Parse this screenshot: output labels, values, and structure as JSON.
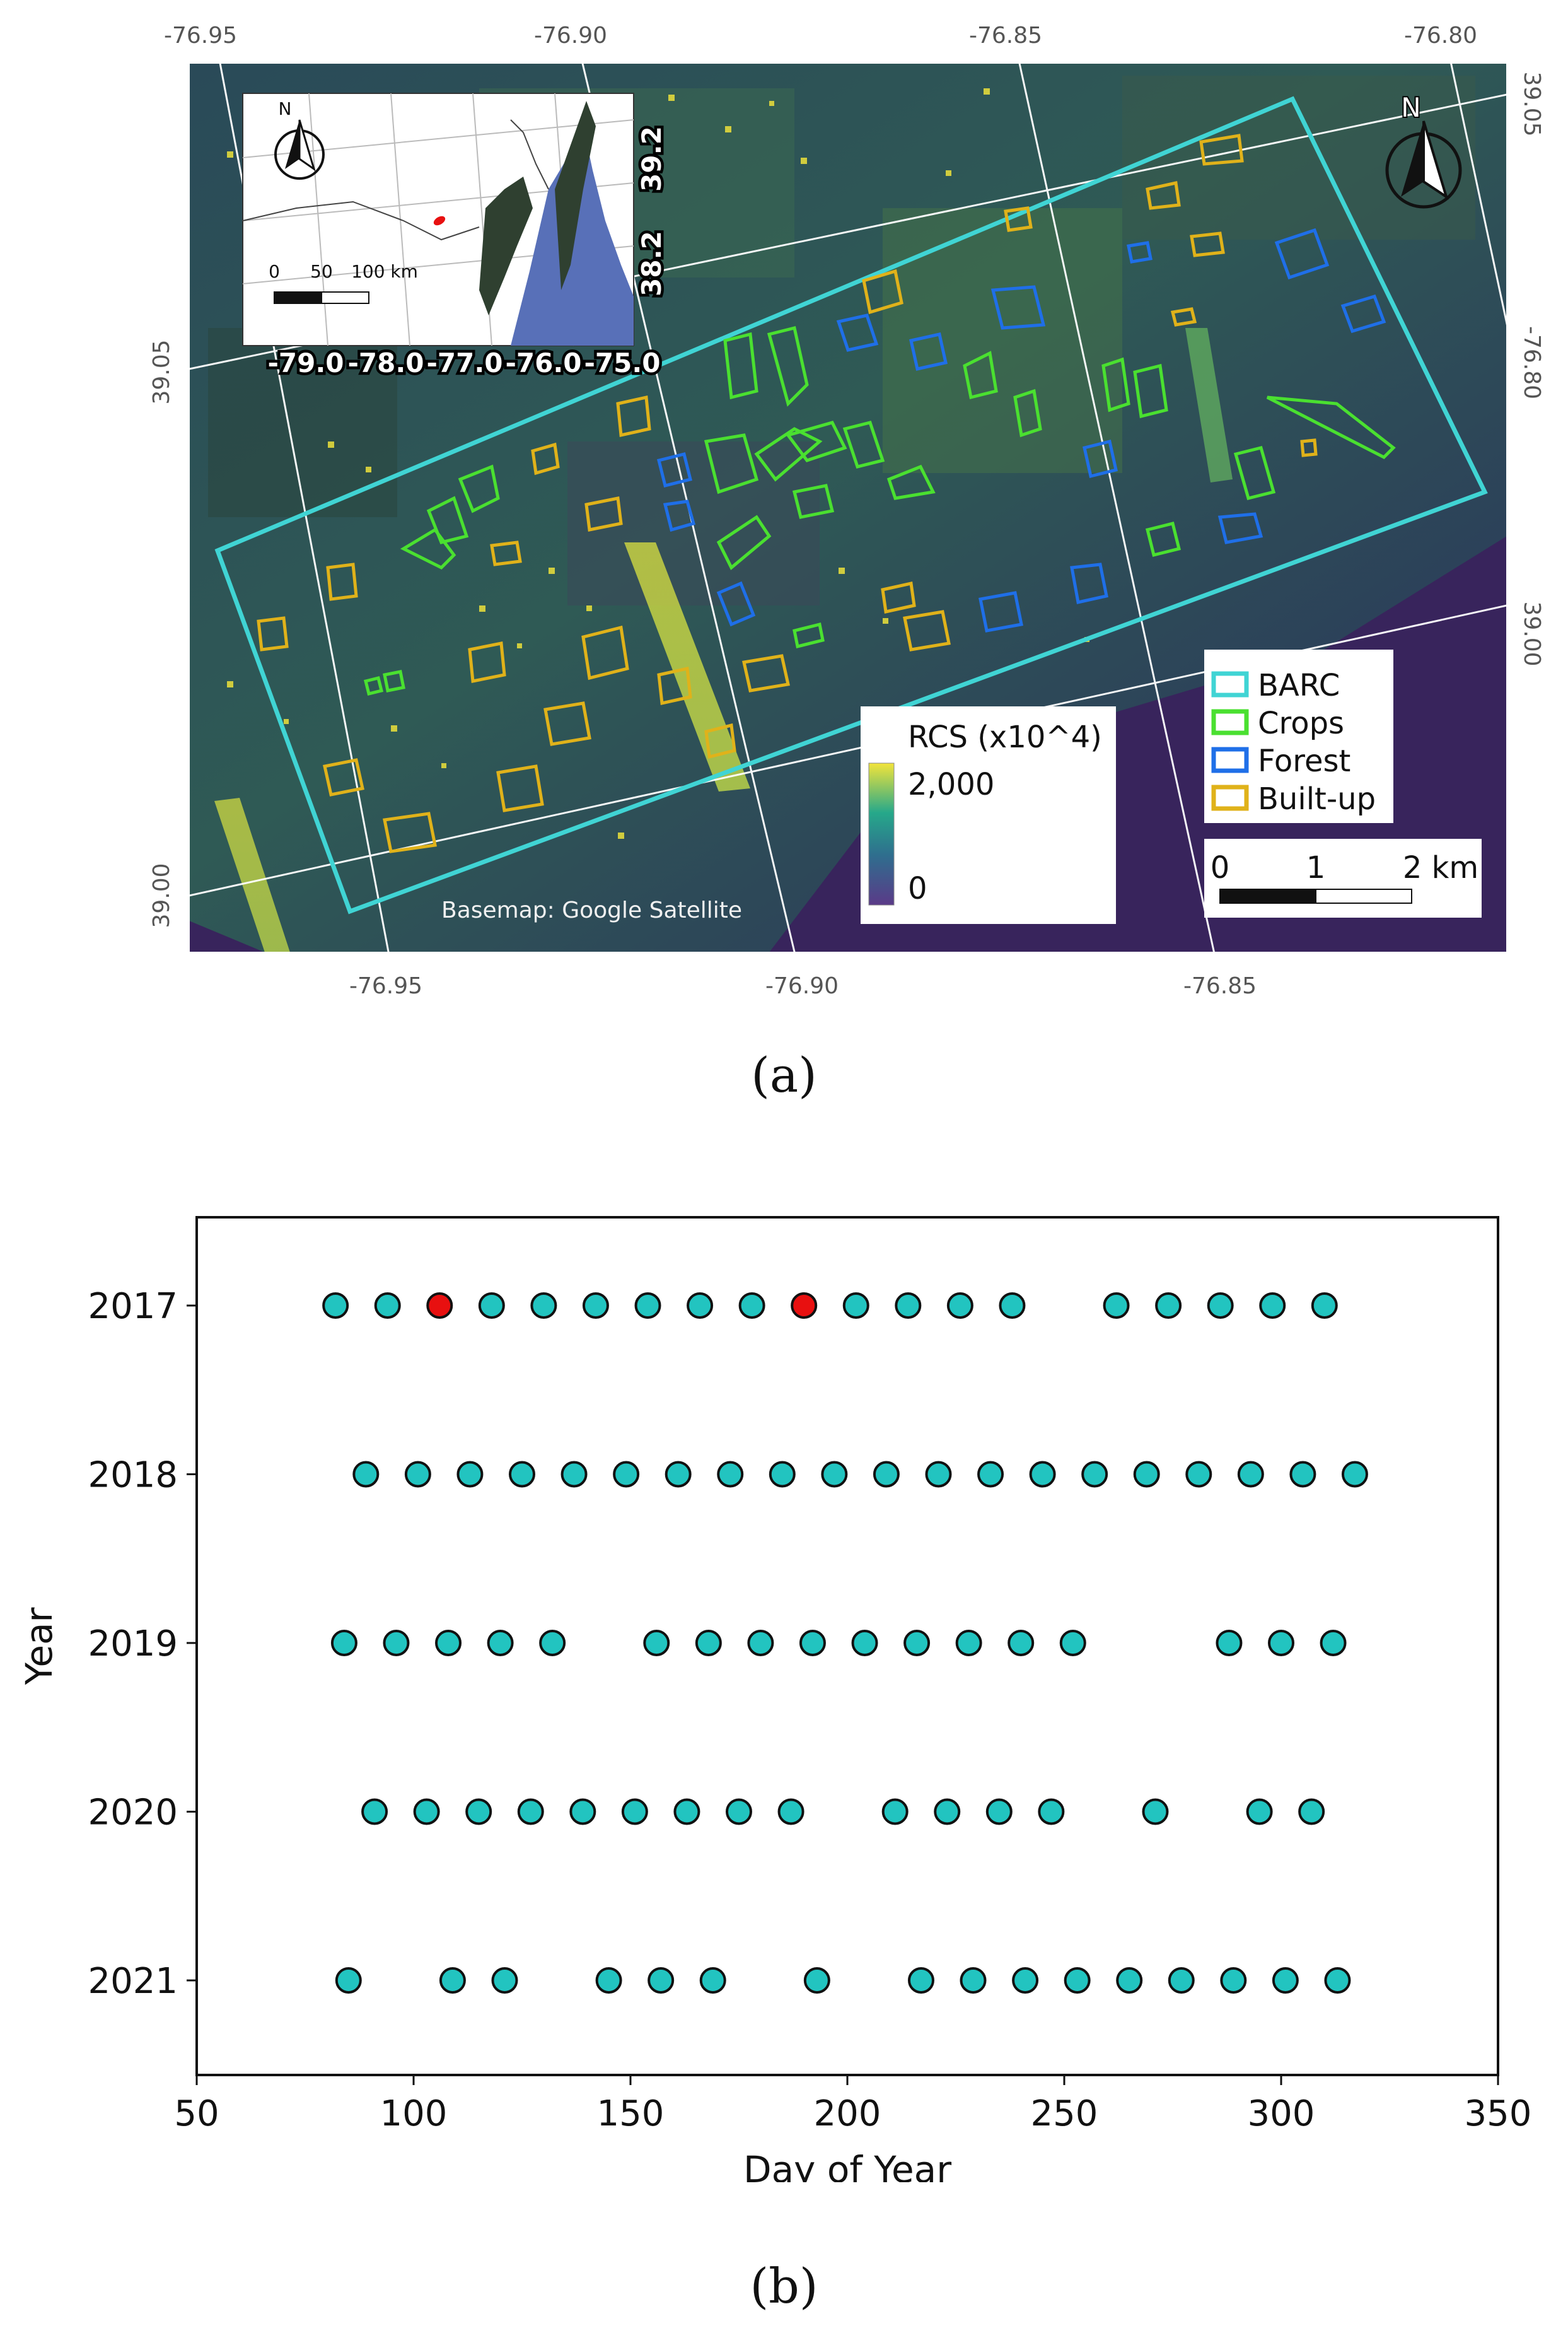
{
  "panel_a": {
    "caption": "(a)",
    "top_lon_ticks": [
      "-76.95",
      "-76.90",
      "-76.85",
      "-76.80"
    ],
    "bottom_lon_ticks": [
      "-76.95",
      "-76.90",
      "-76.85"
    ],
    "left_lat_ticks": [
      "39.05",
      "39.00"
    ],
    "right_lat_ticks": [
      "39.05",
      "-76.80",
      "39.00"
    ],
    "inset": {
      "lon_ticks": [
        "-79.0",
        "-78.0",
        "-77.0",
        "-76.0",
        "-75.0"
      ],
      "lat_ticks": [
        "39.2",
        "38.2"
      ],
      "scale_labels": [
        "0",
        "50",
        "100 km"
      ],
      "north_label": "N"
    },
    "north_label": "N",
    "legend": {
      "items": [
        {
          "label": "BARC",
          "color": "#40d4d4"
        },
        {
          "label": "Crops",
          "color": "#4ae030"
        },
        {
          "label": "Forest",
          "color": "#1f6fe8"
        },
        {
          "label": "Built-up",
          "color": "#e0b21a"
        }
      ]
    },
    "colorbar": {
      "title": "RCS (x10^4)",
      "max_label": "2,000",
      "min_label": "0"
    },
    "scalebar": {
      "labels": [
        "0",
        "1",
        "2 km"
      ]
    },
    "basemap_credit": "Basemap: Google Satellite"
  },
  "panel_b": {
    "caption": "(b)"
  },
  "chart_data": {
    "type": "scatter",
    "xlabel": "Day of Year",
    "ylabel": "Year",
    "xlim": [
      50,
      350
    ],
    "x_ticks": [
      50,
      100,
      150,
      200,
      250,
      300,
      350
    ],
    "categories": [
      "2017",
      "2018",
      "2019",
      "2020",
      "2021"
    ],
    "grid": false,
    "colors": {
      "default": "#22c4c0",
      "highlight": "#e81010"
    },
    "series": [
      {
        "year": "2017",
        "x": [
          82,
          94,
          106,
          118,
          130,
          142,
          154,
          166,
          178,
          190,
          202,
          214,
          226,
          238,
          262,
          274,
          286,
          298,
          310
        ],
        "highlight": [
          106,
          190
        ]
      },
      {
        "year": "2018",
        "x": [
          89,
          101,
          113,
          125,
          137,
          149,
          161,
          173,
          185,
          197,
          209,
          221,
          233,
          245,
          257,
          269,
          281,
          293,
          305,
          317
        ],
        "highlight": []
      },
      {
        "year": "2019",
        "x": [
          84,
          96,
          108,
          120,
          132,
          156,
          168,
          180,
          192,
          204,
          216,
          228,
          240,
          252,
          288,
          300,
          312
        ],
        "highlight": []
      },
      {
        "year": "2020",
        "x": [
          91,
          103,
          115,
          127,
          139,
          151,
          163,
          175,
          187,
          211,
          223,
          235,
          247,
          271,
          295,
          307
        ],
        "highlight": []
      },
      {
        "year": "2021",
        "x": [
          85,
          109,
          121,
          145,
          157,
          169,
          193,
          217,
          229,
          241,
          253,
          265,
          277,
          289,
          301,
          313
        ],
        "highlight": []
      }
    ]
  }
}
